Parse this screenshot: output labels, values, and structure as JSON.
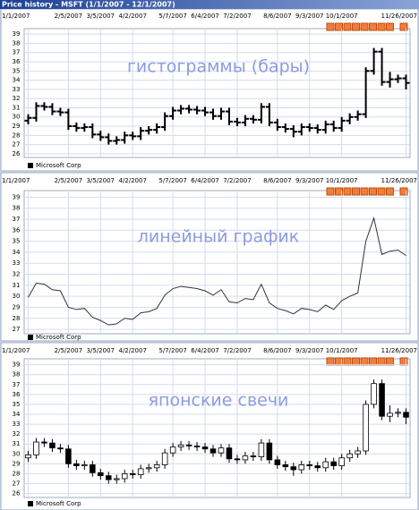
{
  "header": {
    "title": "Price history - MSFT (1/1/2007 - 12/1/2007)"
  },
  "chart_data": [
    {
      "type": "ohlc",
      "annotation": "гистограммы (бары)",
      "categories": [
        "1/1/2007",
        null,
        null,
        null,
        null,
        "2/5/2007",
        null,
        null,
        null,
        "3/5/2007",
        null,
        null,
        null,
        "4/2/2007",
        null,
        null,
        null,
        null,
        "5/7/2007",
        null,
        null,
        null,
        "6/4/2007",
        null,
        null,
        null,
        "7/2/2007",
        null,
        null,
        null,
        null,
        "8/6/2007",
        null,
        null,
        null,
        "9/3/2007",
        null,
        null,
        null,
        "10/1/2007",
        null,
        null,
        null,
        null,
        null,
        null,
        null,
        "11/26/2007"
      ],
      "series": [
        {
          "name": "Microsoft Corp",
          "color": "#000000",
          "open": [
            29.6,
            29.9,
            31.2,
            31.1,
            30.6,
            30.5,
            29.0,
            28.8,
            28.9,
            28.1,
            27.8,
            27.4,
            27.5,
            28.0,
            27.9,
            28.5,
            28.6,
            28.9,
            30.1,
            30.7,
            30.9,
            30.8,
            30.7,
            30.5,
            30.1,
            30.6,
            29.5,
            29.4,
            29.8,
            29.7,
            31.1,
            29.4,
            28.9,
            28.7,
            28.4,
            28.9,
            28.8,
            28.6,
            29.2,
            28.8,
            29.6,
            30.0,
            30.3,
            35.0,
            37.1,
            33.8,
            34.1,
            34.2
          ],
          "high": [
            30.3,
            31.6,
            31.6,
            31.5,
            31.0,
            30.9,
            29.4,
            29.3,
            29.3,
            28.5,
            28.2,
            27.9,
            28.4,
            28.4,
            28.9,
            29.0,
            29.3,
            30.5,
            31.1,
            31.3,
            31.3,
            31.2,
            31.1,
            30.9,
            31.0,
            31.0,
            29.9,
            30.2,
            30.2,
            31.5,
            31.5,
            29.8,
            29.3,
            29.1,
            29.3,
            29.3,
            29.2,
            29.6,
            29.6,
            30.0,
            30.4,
            30.7,
            35.4,
            37.5,
            37.5,
            34.9,
            34.6,
            34.6
          ],
          "low": [
            29.2,
            29.5,
            30.7,
            30.2,
            30.1,
            28.6,
            28.4,
            28.4,
            27.7,
            27.4,
            27.0,
            27.0,
            27.1,
            27.5,
            27.5,
            28.1,
            28.2,
            28.5,
            29.7,
            30.3,
            30.4,
            30.3,
            30.1,
            29.7,
            29.7,
            29.1,
            29.0,
            29.0,
            29.3,
            29.3,
            29.0,
            28.5,
            28.3,
            27.8,
            28.0,
            28.4,
            28.2,
            28.2,
            28.4,
            28.4,
            29.2,
            29.6,
            29.9,
            34.6,
            33.4,
            33.2,
            33.7,
            33.0
          ],
          "close": [
            29.9,
            31.2,
            31.1,
            30.6,
            30.5,
            29.0,
            28.8,
            28.9,
            28.1,
            27.8,
            27.4,
            27.5,
            28.0,
            27.9,
            28.5,
            28.6,
            28.9,
            30.1,
            30.7,
            30.9,
            30.8,
            30.7,
            30.5,
            30.1,
            30.6,
            29.5,
            29.4,
            29.8,
            29.7,
            31.1,
            29.4,
            28.9,
            28.7,
            28.4,
            28.9,
            28.8,
            28.6,
            29.2,
            28.8,
            29.6,
            30.0,
            30.3,
            35.0,
            37.1,
            33.8,
            34.1,
            34.2,
            33.7
          ]
        }
      ],
      "ylim": [
        25.6,
        39.6
      ],
      "yticks": [
        26,
        27,
        28,
        29,
        30,
        31,
        32,
        33,
        34,
        35,
        36,
        37,
        38,
        39
      ],
      "grid": true
    },
    {
      "type": "line",
      "annotation": "линейный график",
      "categories": [
        "1/1/2007",
        null,
        null,
        null,
        null,
        "2/5/2007",
        null,
        null,
        null,
        "3/5/2007",
        null,
        null,
        null,
        "4/2/2007",
        null,
        null,
        null,
        null,
        "5/7/2007",
        null,
        null,
        null,
        "6/4/2007",
        null,
        null,
        null,
        "7/2/2007",
        null,
        null,
        null,
        null,
        "8/6/2007",
        null,
        null,
        null,
        "9/3/2007",
        null,
        null,
        null,
        "10/1/2007",
        null,
        null,
        null,
        null,
        null,
        null,
        null,
        "11/26/2007"
      ],
      "series": [
        {
          "name": "Microsoft Corp",
          "color": "#333333",
          "values": [
            29.9,
            31.2,
            31.1,
            30.6,
            30.5,
            29.0,
            28.8,
            28.9,
            28.1,
            27.8,
            27.4,
            27.5,
            28.0,
            27.9,
            28.5,
            28.6,
            28.9,
            30.1,
            30.7,
            30.9,
            30.8,
            30.7,
            30.5,
            30.1,
            30.6,
            29.5,
            29.4,
            29.8,
            29.7,
            31.1,
            29.4,
            28.9,
            28.7,
            28.4,
            28.9,
            28.8,
            28.6,
            29.2,
            28.8,
            29.6,
            30.0,
            30.3,
            35.0,
            37.1,
            33.8,
            34.1,
            34.2,
            33.7
          ]
        }
      ],
      "ylim": [
        26.6,
        39.6
      ],
      "yticks": [
        27,
        28,
        29,
        30,
        31,
        32,
        33,
        34,
        35,
        36,
        37,
        38,
        39
      ],
      "grid": true
    },
    {
      "type": "candlestick",
      "annotation": "японские свечи",
      "categories": [
        "1/1/2007",
        null,
        null,
        null,
        null,
        "2/5/2007",
        null,
        null,
        null,
        "3/5/2007",
        null,
        null,
        null,
        "4/2/2007",
        null,
        null,
        null,
        null,
        "5/7/2007",
        null,
        null,
        null,
        "6/4/2007",
        null,
        null,
        null,
        "7/2/2007",
        null,
        null,
        null,
        null,
        "8/6/2007",
        null,
        null,
        null,
        "9/3/2007",
        null,
        null,
        null,
        "10/1/2007",
        null,
        null,
        null,
        null,
        null,
        null,
        null,
        "11/26/2007"
      ],
      "series": [
        {
          "name": "Microsoft Corp",
          "color": "#000000",
          "open": [
            29.6,
            29.9,
            31.2,
            31.1,
            30.6,
            30.5,
            29.0,
            28.8,
            28.9,
            28.1,
            27.8,
            27.4,
            27.5,
            28.0,
            27.9,
            28.5,
            28.6,
            28.9,
            30.1,
            30.7,
            30.9,
            30.8,
            30.7,
            30.5,
            30.1,
            30.6,
            29.5,
            29.4,
            29.8,
            29.7,
            31.1,
            29.4,
            28.9,
            28.7,
            28.4,
            28.9,
            28.8,
            28.6,
            29.2,
            28.8,
            29.6,
            30.0,
            30.3,
            35.0,
            37.1,
            33.8,
            34.1,
            34.2
          ],
          "high": [
            30.3,
            31.6,
            31.6,
            31.5,
            31.0,
            30.9,
            29.4,
            29.3,
            29.3,
            28.5,
            28.2,
            27.9,
            28.4,
            28.4,
            28.9,
            29.0,
            29.3,
            30.5,
            31.1,
            31.3,
            31.3,
            31.2,
            31.1,
            30.9,
            31.0,
            31.0,
            29.9,
            30.2,
            30.2,
            31.5,
            31.5,
            29.8,
            29.3,
            29.1,
            29.3,
            29.3,
            29.2,
            29.6,
            29.6,
            30.0,
            30.4,
            30.7,
            35.4,
            37.5,
            37.5,
            34.9,
            34.6,
            34.6
          ],
          "low": [
            29.2,
            29.5,
            30.7,
            30.2,
            30.1,
            28.6,
            28.4,
            28.4,
            27.7,
            27.4,
            27.0,
            27.0,
            27.1,
            27.5,
            27.5,
            28.1,
            28.2,
            28.5,
            29.7,
            30.3,
            30.4,
            30.3,
            30.1,
            29.7,
            29.7,
            29.1,
            29.0,
            29.0,
            29.3,
            29.3,
            29.0,
            28.5,
            28.3,
            27.8,
            28.0,
            28.4,
            28.2,
            28.2,
            28.4,
            28.4,
            29.2,
            29.6,
            29.9,
            34.6,
            33.4,
            33.2,
            33.7,
            33.0
          ],
          "close": [
            29.9,
            31.2,
            31.1,
            30.6,
            30.5,
            29.0,
            28.8,
            28.9,
            28.1,
            27.8,
            27.4,
            27.5,
            28.0,
            27.9,
            28.5,
            28.6,
            28.9,
            30.1,
            30.7,
            30.9,
            30.8,
            30.7,
            30.5,
            30.1,
            30.6,
            29.5,
            29.4,
            29.8,
            29.7,
            31.1,
            29.4,
            28.9,
            28.7,
            28.4,
            28.9,
            28.8,
            28.6,
            29.2,
            28.8,
            29.6,
            30.0,
            30.3,
            35.0,
            37.1,
            33.8,
            34.1,
            34.2,
            33.7
          ]
        }
      ],
      "ylim": [
        25.6,
        39.6
      ],
      "yticks": [
        26,
        27,
        28,
        29,
        30,
        31,
        32,
        33,
        34,
        35,
        36,
        37,
        38,
        39
      ],
      "grid": true
    }
  ]
}
